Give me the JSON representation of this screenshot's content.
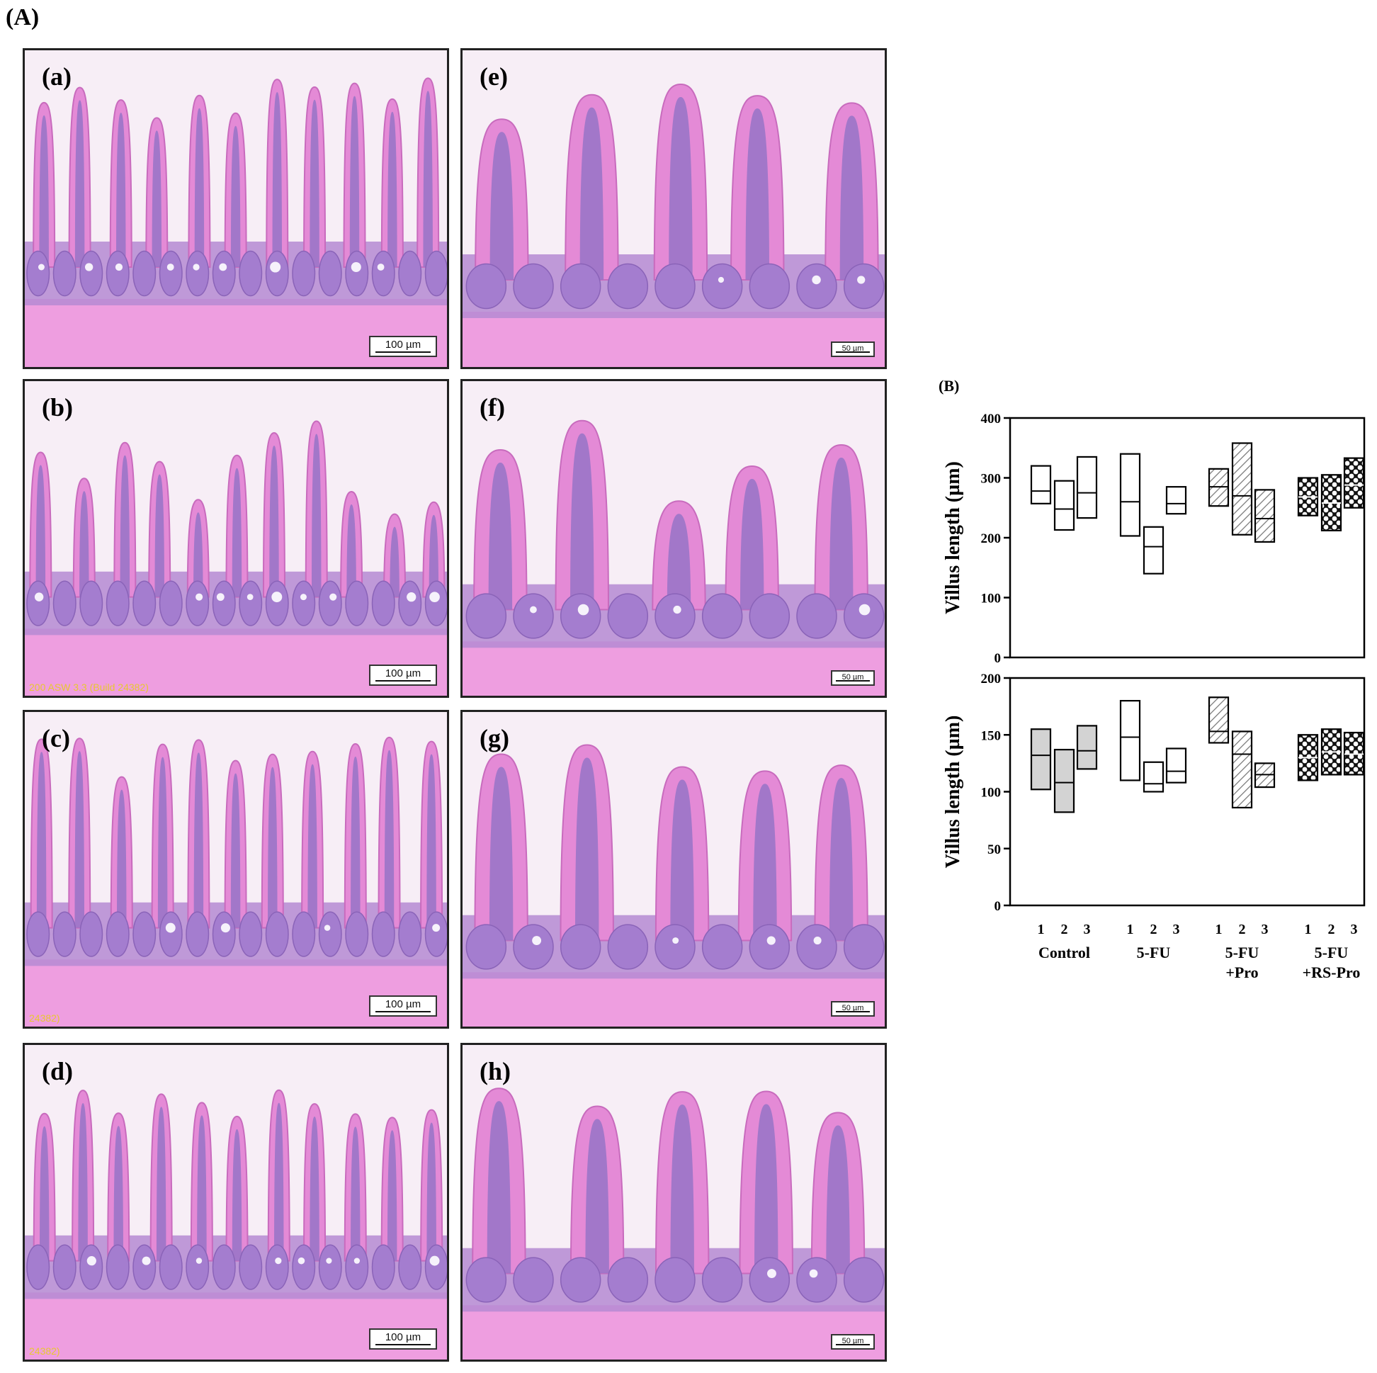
{
  "figure": {
    "label_A": "(A)",
    "label_B": "(B)"
  },
  "panels": [
    {
      "letter": "(a)",
      "scale": "100 µm",
      "caption": ""
    },
    {
      "letter": "(b)",
      "scale": "100 µm",
      "caption": "200 ASW 3.3 (Build 24382)"
    },
    {
      "letter": "(c)",
      "scale": "100 µm",
      "caption": "24382)"
    },
    {
      "letter": "(d)",
      "scale": "100 µm",
      "caption": "24382)"
    },
    {
      "letter": "(e)",
      "scale": "50 µm",
      "caption": ""
    },
    {
      "letter": "(f)",
      "scale": "50 µm",
      "caption": ""
    },
    {
      "letter": "(g)",
      "scale": "50 µm",
      "caption": ""
    },
    {
      "letter": "(h)",
      "scale": "50 µm",
      "caption": ""
    }
  ],
  "colors": {
    "tissue_pink": "#e48ad6",
    "tissue_purple": "#9a74c8",
    "background": "#f7eef6"
  },
  "chart_data": [
    {
      "type": "box",
      "ylabel": "Villus length (µm)",
      "ylim": [
        0,
        400
      ],
      "yticks": [
        0,
        100,
        200,
        300,
        400
      ],
      "groups": [
        "Control",
        "5-FU",
        "5-FU\n+Pro",
        "5-FU\n+RS-Pro"
      ],
      "subcategories": [
        "1",
        "2",
        "3"
      ],
      "series": [
        {
          "group": "Control",
          "fill": "white",
          "boxes": [
            {
              "min": 257,
              "median": 278,
              "max": 320
            },
            {
              "min": 213,
              "median": 248,
              "max": 295
            },
            {
              "min": 233,
              "median": 275,
              "max": 335
            }
          ]
        },
        {
          "group": "5-FU",
          "fill": "white",
          "boxes": [
            {
              "min": 203,
              "median": 260,
              "max": 340
            },
            {
              "min": 140,
              "median": 185,
              "max": 218
            },
            {
              "min": 240,
              "median": 257,
              "max": 285
            }
          ]
        },
        {
          "group": "5-FU\n+Pro",
          "fill": "hatch",
          "boxes": [
            {
              "min": 253,
              "median": 285,
              "max": 315
            },
            {
              "min": 205,
              "median": 270,
              "max": 358
            },
            {
              "min": 193,
              "median": 232,
              "max": 280
            }
          ]
        },
        {
          "group": "5-FU\n+RS-Pro",
          "fill": "crosshatch",
          "boxes": [
            {
              "min": 237,
              "median": 268,
              "max": 300
            },
            {
              "min": 212,
              "median": 258,
              "max": 305
            },
            {
              "min": 250,
              "median": 288,
              "max": 333
            }
          ]
        }
      ]
    },
    {
      "type": "box",
      "ylabel": "Villus length (µm)",
      "ylim": [
        0,
        200
      ],
      "yticks": [
        0,
        50,
        100,
        150,
        200
      ],
      "groups": [
        "Control",
        "5-FU",
        "5-FU\n+Pro",
        "5-FU\n+RS-Pro"
      ],
      "subcategories": [
        "1",
        "2",
        "3"
      ],
      "series": [
        {
          "group": "Control",
          "fill": "gray",
          "boxes": [
            {
              "min": 102,
              "median": 132,
              "max": 155
            },
            {
              "min": 82,
              "median": 108,
              "max": 137
            },
            {
              "min": 120,
              "median": 136,
              "max": 158
            }
          ]
        },
        {
          "group": "5-FU",
          "fill": "white",
          "boxes": [
            {
              "min": 110,
              "median": 148,
              "max": 180
            },
            {
              "min": 100,
              "median": 107,
              "max": 126
            },
            {
              "min": 108,
              "median": 118,
              "max": 138
            }
          ]
        },
        {
          "group": "5-FU\n+Pro",
          "fill": "hatch",
          "boxes": [
            {
              "min": 143,
              "median": 153,
              "max": 183
            },
            {
              "min": 86,
              "median": 133,
              "max": 153
            },
            {
              "min": 104,
              "median": 115,
              "max": 125
            }
          ]
        },
        {
          "group": "5-FU\n+RS-Pro",
          "fill": "crosshatch",
          "boxes": [
            {
              "min": 110,
              "median": 130,
              "max": 150
            },
            {
              "min": 115,
              "median": 135,
              "max": 155
            },
            {
              "min": 115,
              "median": 133,
              "max": 152
            }
          ]
        }
      ]
    }
  ]
}
